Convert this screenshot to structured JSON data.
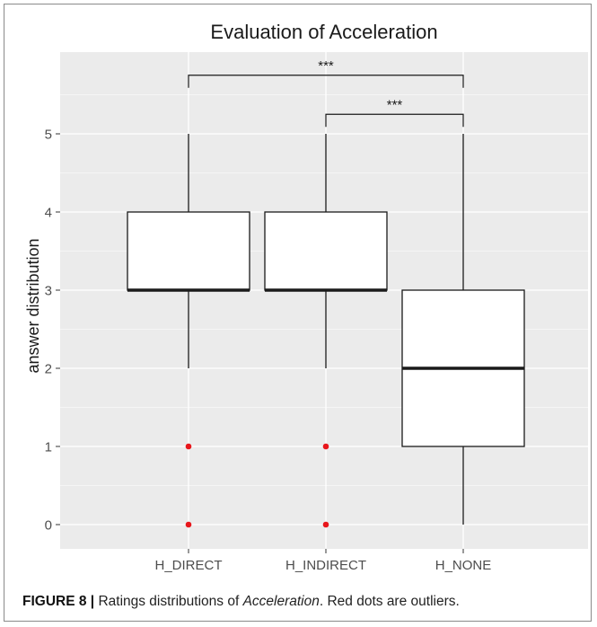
{
  "chart_data": {
    "type": "box",
    "title": "Evaluation of Acceleration",
    "xlabel": "",
    "ylabel": "answer distribution",
    "ylim": [
      -0.3,
      5.9
    ],
    "yticks": [
      0,
      1,
      2,
      3,
      4,
      5
    ],
    "grid": true,
    "categories": [
      "H_DIRECT",
      "H_INDIRECT",
      "H_NONE"
    ],
    "boxes": [
      {
        "category": "H_DIRECT",
        "whisker_low": 2,
        "q1": 3,
        "median": 3,
        "q3": 4,
        "whisker_high": 5,
        "outliers": [
          1,
          0
        ]
      },
      {
        "category": "H_INDIRECT",
        "whisker_low": 2,
        "q1": 3,
        "median": 3,
        "q3": 4,
        "whisker_high": 5,
        "outliers": [
          1,
          0
        ]
      },
      {
        "category": "H_NONE",
        "whisker_low": 0,
        "q1": 1,
        "median": 2,
        "q3": 3,
        "whisker_high": 5,
        "outliers": []
      }
    ],
    "significance": [
      {
        "from": "H_DIRECT",
        "to": "H_NONE",
        "label": "***",
        "y": 5.75
      },
      {
        "from": "H_INDIRECT",
        "to": "H_NONE",
        "label": "***",
        "y": 5.25
      }
    ],
    "colors": {
      "panel": "#ebebeb",
      "grid": "#ffffff",
      "box_fill": "#ffffff",
      "line": "#1a1a1a",
      "outlier": "#e8161b"
    }
  },
  "caption": {
    "figure_label": "FIGURE 8 |",
    "text_before": " Ratings distributions of ",
    "text_em": "Acceleration",
    "text_after": ". Red dots are outliers."
  }
}
